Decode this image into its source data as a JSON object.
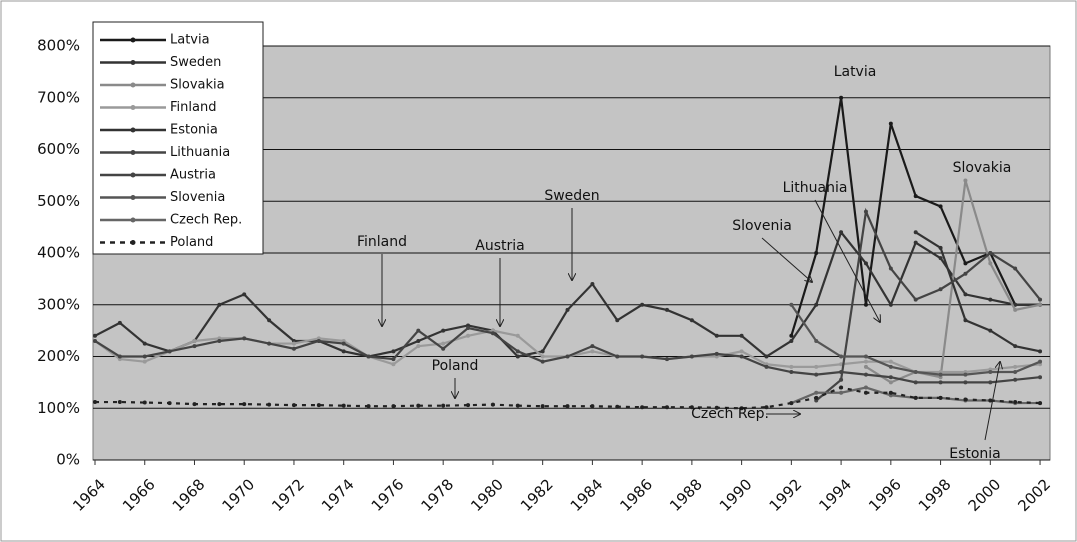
{
  "chart_data": {
    "type": "line",
    "x": [
      1964,
      1965,
      1966,
      1967,
      1968,
      1969,
      1970,
      1971,
      1972,
      1973,
      1974,
      1975,
      1976,
      1977,
      1978,
      1979,
      1980,
      1981,
      1982,
      1983,
      1984,
      1985,
      1986,
      1987,
      1988,
      1989,
      1990,
      1991,
      1992,
      1993,
      1994,
      1995,
      1996,
      1997,
      1998,
      1999,
      2000,
      2001,
      2002
    ],
    "xlim": [
      1964,
      2002.4
    ],
    "xticks": [
      1964,
      1966,
      1968,
      1970,
      1972,
      1974,
      1976,
      1978,
      1980,
      1982,
      1984,
      1986,
      1988,
      1990,
      1992,
      1994,
      1996,
      1998,
      2000,
      2002
    ],
    "ylim": [
      0,
      800
    ],
    "yticks": [
      {
        "value": 0,
        "label": "0%"
      },
      {
        "value": 100,
        "label": "100%"
      },
      {
        "value": 200,
        "label": "200%"
      },
      {
        "value": 300,
        "label": "300%"
      },
      {
        "value": 400,
        "label": "400%"
      },
      {
        "value": 500,
        "label": "500%"
      },
      {
        "value": 600,
        "label": "600%"
      },
      {
        "value": 700,
        "label": "700%"
      },
      {
        "value": 800,
        "label": "800%"
      }
    ],
    "grid": true,
    "legend": "top-left",
    "series": [
      {
        "name": "Latvia",
        "color": "#1a1a1a",
        "values": [
          null,
          null,
          null,
          null,
          null,
          null,
          null,
          null,
          null,
          null,
          null,
          null,
          null,
          null,
          null,
          null,
          null,
          null,
          null,
          null,
          null,
          null,
          null,
          null,
          null,
          null,
          null,
          null,
          240,
          400,
          700,
          300,
          650,
          510,
          490,
          380,
          400,
          300,
          300
        ]
      },
      {
        "name": "Sweden",
        "color": "#333333",
        "values": [
          240,
          265,
          225,
          210,
          230,
          300,
          320,
          270,
          230,
          230,
          210,
          200,
          210,
          230,
          250,
          260,
          250,
          200,
          210,
          290,
          340,
          270,
          300,
          290,
          270,
          240,
          240,
          200,
          230,
          300,
          440,
          380,
          300,
          420,
          390,
          320,
          310,
          300,
          300
        ]
      },
      {
        "name": "Slovakia",
        "color": "#8a8a8a",
        "values": [
          null,
          null,
          null,
          null,
          null,
          null,
          null,
          null,
          null,
          null,
          null,
          null,
          null,
          null,
          null,
          null,
          null,
          null,
          null,
          null,
          null,
          null,
          null,
          null,
          null,
          null,
          null,
          null,
          null,
          null,
          null,
          180,
          150,
          170,
          160,
          540,
          380,
          290,
          300
        ]
      },
      {
        "name": "Finland",
        "color": "#9a9a9a",
        "values": [
          230,
          195,
          190,
          210,
          230,
          235,
          235,
          225,
          225,
          235,
          230,
          200,
          185,
          220,
          225,
          240,
          250,
          240,
          200,
          200,
          210,
          200,
          200,
          195,
          200,
          200,
          210,
          185,
          180,
          180,
          185,
          190,
          190,
          170,
          170,
          170,
          175,
          180,
          185
        ]
      },
      {
        "name": "Estonia",
        "color": "#333333",
        "values": [
          null,
          null,
          null,
          null,
          null,
          null,
          null,
          null,
          null,
          null,
          null,
          null,
          null,
          null,
          null,
          null,
          null,
          null,
          null,
          null,
          null,
          null,
          null,
          null,
          null,
          null,
          null,
          null,
          null,
          null,
          null,
          null,
          null,
          440,
          410,
          270,
          250,
          220,
          210
        ]
      },
      {
        "name": "Lithuania",
        "color": "#444444",
        "values": [
          null,
          null,
          null,
          null,
          null,
          null,
          null,
          null,
          null,
          null,
          null,
          null,
          null,
          null,
          null,
          null,
          null,
          null,
          null,
          null,
          null,
          null,
          null,
          null,
          null,
          null,
          null,
          null,
          null,
          115,
          155,
          480,
          370,
          310,
          330,
          360,
          400,
          370,
          310
        ]
      },
      {
        "name": "Austria",
        "color": "#444444",
        "values": [
          230,
          200,
          200,
          210,
          220,
          230,
          235,
          225,
          215,
          230,
          225,
          200,
          195,
          250,
          215,
          255,
          245,
          210,
          190,
          200,
          220,
          200,
          200,
          195,
          200,
          205,
          200,
          180,
          170,
          165,
          170,
          165,
          160,
          150,
          150,
          150,
          150,
          155,
          160
        ]
      },
      {
        "name": "Slovenia",
        "color": "#555555",
        "values": [
          null,
          null,
          null,
          null,
          null,
          null,
          null,
          null,
          null,
          null,
          null,
          null,
          null,
          null,
          null,
          null,
          null,
          null,
          null,
          null,
          null,
          null,
          null,
          null,
          null,
          null,
          null,
          null,
          300,
          230,
          200,
          200,
          180,
          170,
          165,
          165,
          170,
          170,
          190
        ]
      },
      {
        "name": "Czech Rep.",
        "color": "#666666",
        "values": [
          null,
          null,
          null,
          null,
          null,
          null,
          null,
          null,
          null,
          null,
          null,
          null,
          null,
          null,
          null,
          null,
          null,
          null,
          null,
          null,
          null,
          null,
          null,
          null,
          null,
          null,
          null,
          null,
          110,
          130,
          130,
          140,
          125,
          120,
          120,
          115,
          115,
          110,
          110
        ]
      },
      {
        "name": "Poland",
        "color": "#222222",
        "dashed": true,
        "values": [
          112,
          112,
          111,
          110,
          108,
          108,
          108,
          107,
          106,
          106,
          105,
          104,
          104,
          105,
          105,
          106,
          107,
          105,
          104,
          104,
          104,
          103,
          102,
          102,
          102,
          101,
          100,
          102,
          110,
          120,
          140,
          130,
          130,
          120,
          120,
          117,
          115,
          112,
          110
        ]
      }
    ],
    "annotations": [
      "Latvia",
      "Slovakia",
      "Lithuania",
      "Slovenia",
      "Sweden",
      "Finland",
      "Austria",
      "Poland",
      "Czech Rep.",
      "Estonia"
    ]
  }
}
